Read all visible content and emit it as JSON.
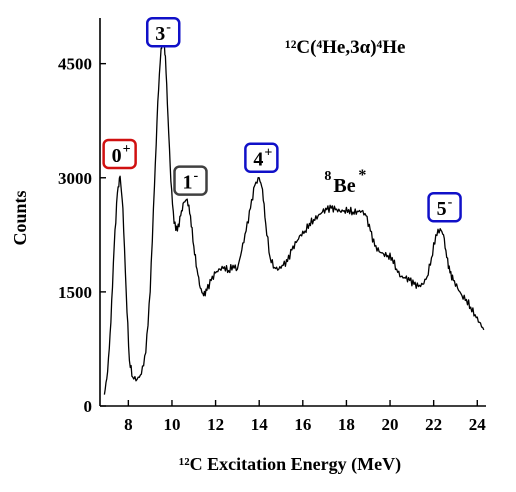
{
  "chart_data": {
    "type": "line",
    "title": "¹²C(⁴He,3α)⁴He",
    "xlabel": "¹²C Excitation Energy (MeV)",
    "ylabel": "Counts",
    "xlim": [
      6.7,
      24.4
    ],
    "ylim": [
      0,
      5100
    ],
    "x_ticks": [
      "8",
      "10",
      "12",
      "14",
      "16",
      "18",
      "20",
      "22",
      "24"
    ],
    "y_ticks": [
      "0",
      "1500",
      "3000",
      "4500"
    ],
    "grid": false,
    "series": [
      {
        "x": [
          6.9,
          7.05,
          7.2,
          7.35,
          7.5,
          7.62,
          7.75,
          7.9,
          8.05,
          8.2,
          8.4,
          8.6,
          8.8,
          9.0,
          9.2,
          9.35,
          9.5,
          9.6,
          9.7,
          9.82,
          9.95,
          10.1,
          10.25,
          10.4,
          10.55,
          10.7,
          10.85,
          11.0,
          11.15,
          11.3,
          11.45,
          11.6,
          11.8,
          12.0,
          12.2,
          12.4,
          12.6,
          12.8,
          13.0,
          13.2,
          13.4,
          13.6,
          13.8,
          14.0,
          14.15,
          14.3,
          14.5,
          14.7,
          14.9,
          15.1,
          15.3,
          15.5,
          15.7,
          15.9,
          16.1,
          16.3,
          16.5,
          16.7,
          16.9,
          17.1,
          17.3,
          17.5,
          17.7,
          17.9,
          18.1,
          18.3,
          18.5,
          18.7,
          18.9,
          19.1,
          19.3,
          19.5,
          19.7,
          19.9,
          20.1,
          20.3,
          20.5,
          20.7,
          20.9,
          21.1,
          21.3,
          21.5,
          21.7,
          21.9,
          22.1,
          22.3,
          22.45,
          22.6,
          22.75,
          22.9,
          23.1,
          23.3,
          23.5,
          23.7,
          23.9,
          24.1,
          24.3
        ],
        "y": [
          150,
          450,
          1100,
          2100,
          2800,
          3020,
          2600,
          1500,
          600,
          380,
          350,
          420,
          700,
          1500,
          2900,
          4000,
          4700,
          4850,
          4600,
          3800,
          2950,
          2400,
          2300,
          2500,
          2680,
          2720,
          2500,
          2100,
          1800,
          1550,
          1450,
          1520,
          1650,
          1750,
          1800,
          1830,
          1780,
          1850,
          1800,
          2050,
          2300,
          2600,
          2900,
          3000,
          2850,
          2400,
          1950,
          1820,
          1800,
          1850,
          1900,
          2050,
          2150,
          2250,
          2300,
          2400,
          2450,
          2500,
          2550,
          2580,
          2600,
          2580,
          2560,
          2570,
          2580,
          2550,
          2560,
          2560,
          2500,
          2300,
          2100,
          2030,
          2000,
          1980,
          1950,
          1800,
          1700,
          1680,
          1650,
          1600,
          1570,
          1600,
          1700,
          1950,
          2250,
          2330,
          2250,
          1950,
          1750,
          1650,
          1550,
          1450,
          1400,
          1300,
          1200,
          1100,
          1000
        ]
      }
    ],
    "annotations": [
      {
        "text": "3",
        "sup": "-",
        "color": "#1010c8",
        "x": 9.6,
        "y": 4900
      },
      {
        "text": "0",
        "sup": "+",
        "color": "#d01010",
        "x": 7.6,
        "y": 3300
      },
      {
        "text": "1",
        "sup": "-",
        "color": "#404040",
        "x": 10.85,
        "y": 2950
      },
      {
        "text": "4",
        "sup": "+",
        "color": "#1010c8",
        "x": 14.1,
        "y": 3250
      },
      {
        "text": "5",
        "sup": "-",
        "color": "#1010c8",
        "x": 22.5,
        "y": 2600
      },
      {
        "text": "Be",
        "pre": "8",
        "sup": "*",
        "color": "none",
        "x": 18.0,
        "y": 2920
      }
    ]
  }
}
